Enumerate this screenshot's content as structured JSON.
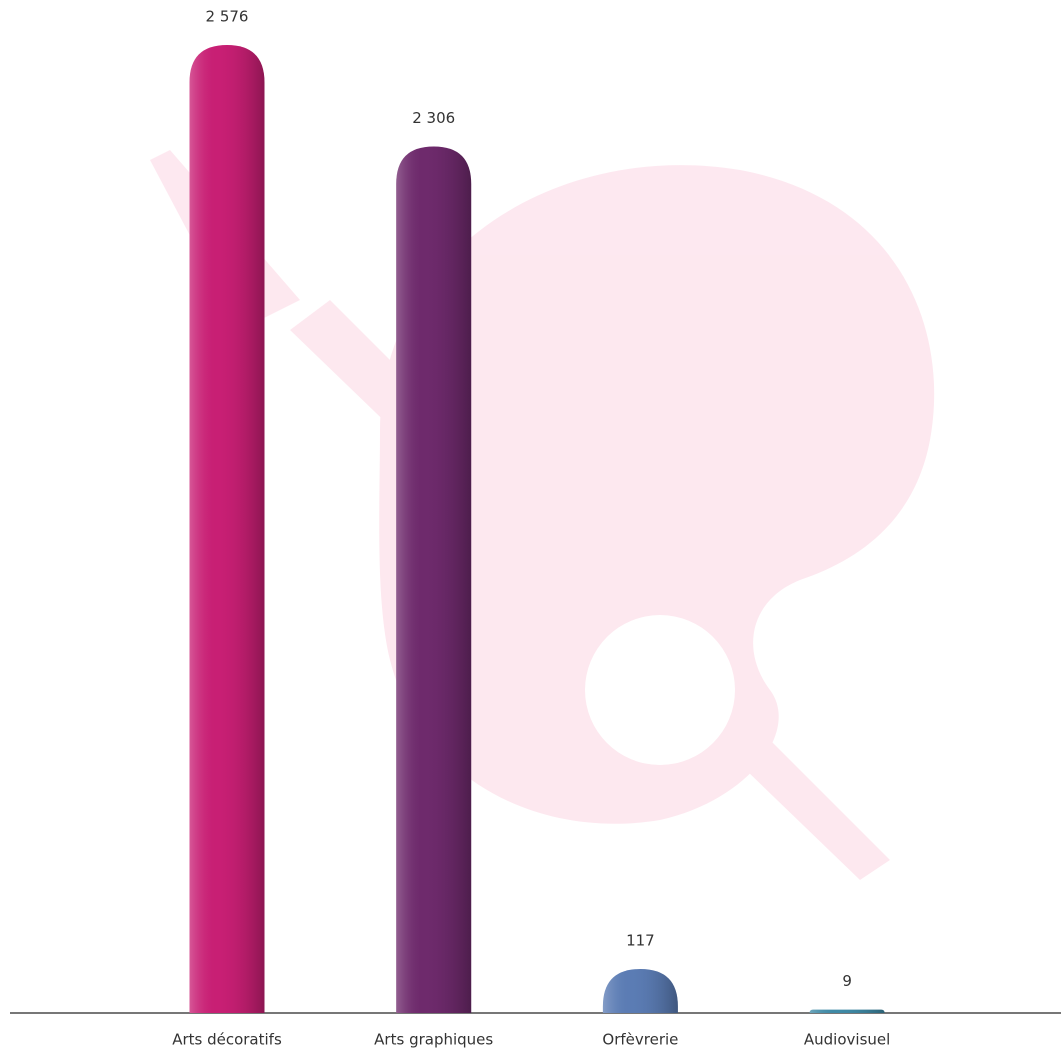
{
  "chart_data": {
    "type": "bar",
    "categories": [
      "Arts décoratifs",
      "Arts graphiques",
      "Orfèvrerie",
      "Audiovisuel"
    ],
    "values": [
      2576,
      2306,
      117,
      9
    ],
    "value_labels": [
      "2 576",
      "2 306",
      "117",
      "9"
    ],
    "colors": [
      "#c81f74",
      "#6e2a6c",
      "#5b7cb4",
      "#3f8aa6"
    ]
  }
}
